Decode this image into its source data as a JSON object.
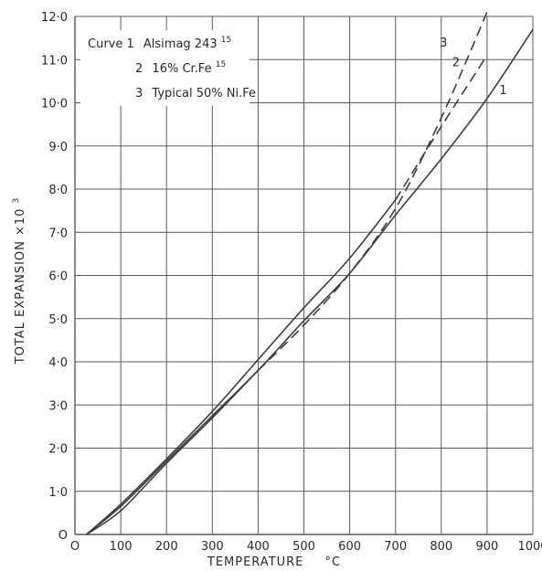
{
  "chart_data": {
    "type": "line",
    "xlabel": "TEMPERATURE",
    "xlabel_unit": "°C",
    "ylabel": "TOTAL EXPANSION ×10",
    "ylabel_exp": "3",
    "xlim": [
      0,
      1000
    ],
    "ylim": [
      0,
      12
    ],
    "grid": true,
    "x_ticks": [
      0,
      100,
      200,
      300,
      400,
      500,
      600,
      700,
      800,
      900,
      1000
    ],
    "x_tick_labels": [
      "O",
      "100",
      "200",
      "300",
      "400",
      "500",
      "600",
      "700",
      "800",
      "900",
      "1000"
    ],
    "y_ticks": [
      0,
      1,
      2,
      3,
      4,
      5,
      6,
      7,
      8,
      9,
      10,
      11,
      12
    ],
    "y_tick_labels": [
      "O",
      "1·0",
      "2·0",
      "3·0",
      "4·0",
      "5·0",
      "6·0",
      "7·0",
      "8·0",
      "9·0",
      "10·0",
      "11·0",
      "12·0"
    ],
    "legend": {
      "placement": "top-left",
      "entries": [
        {
          "number": "Curve 1",
          "text": "Alsimag 243",
          "sup": "15"
        },
        {
          "number": "2",
          "text": "16% Cr.Fe",
          "sup": "15"
        },
        {
          "number": "3",
          "text": "Typical 50% Ni.Fe",
          "sup": ""
        }
      ]
    },
    "series": [
      {
        "id": "1",
        "label": "1",
        "style": "solid",
        "x": [
          25,
          100,
          200,
          300,
          400,
          500,
          600,
          700,
          800,
          900,
          1000
        ],
        "y": [
          0,
          0.65,
          1.7,
          2.75,
          3.8,
          4.95,
          6.05,
          7.4,
          8.7,
          10.1,
          11.7
        ]
      },
      {
        "id": "2",
        "label": "2",
        "style": "solid-dashed",
        "solid_until": 700,
        "x": [
          25,
          100,
          200,
          300,
          400,
          500,
          600,
          700,
          800,
          900
        ],
        "y": [
          0,
          0.7,
          1.75,
          2.85,
          4.05,
          5.25,
          6.4,
          7.75,
          9.45,
          11.1
        ]
      },
      {
        "id": "3",
        "label": "3",
        "style": "solid-dashed",
        "solid_until": 400,
        "x": [
          25,
          100,
          200,
          300,
          400,
          500,
          600,
          700,
          800,
          900
        ],
        "y": [
          0,
          0.55,
          1.65,
          2.7,
          3.8,
          4.85,
          6.05,
          7.55,
          9.65,
          12.1
        ]
      }
    ],
    "series_colors": {
      "line": "#3d3d3d",
      "grid": "#5a5a5a"
    }
  }
}
